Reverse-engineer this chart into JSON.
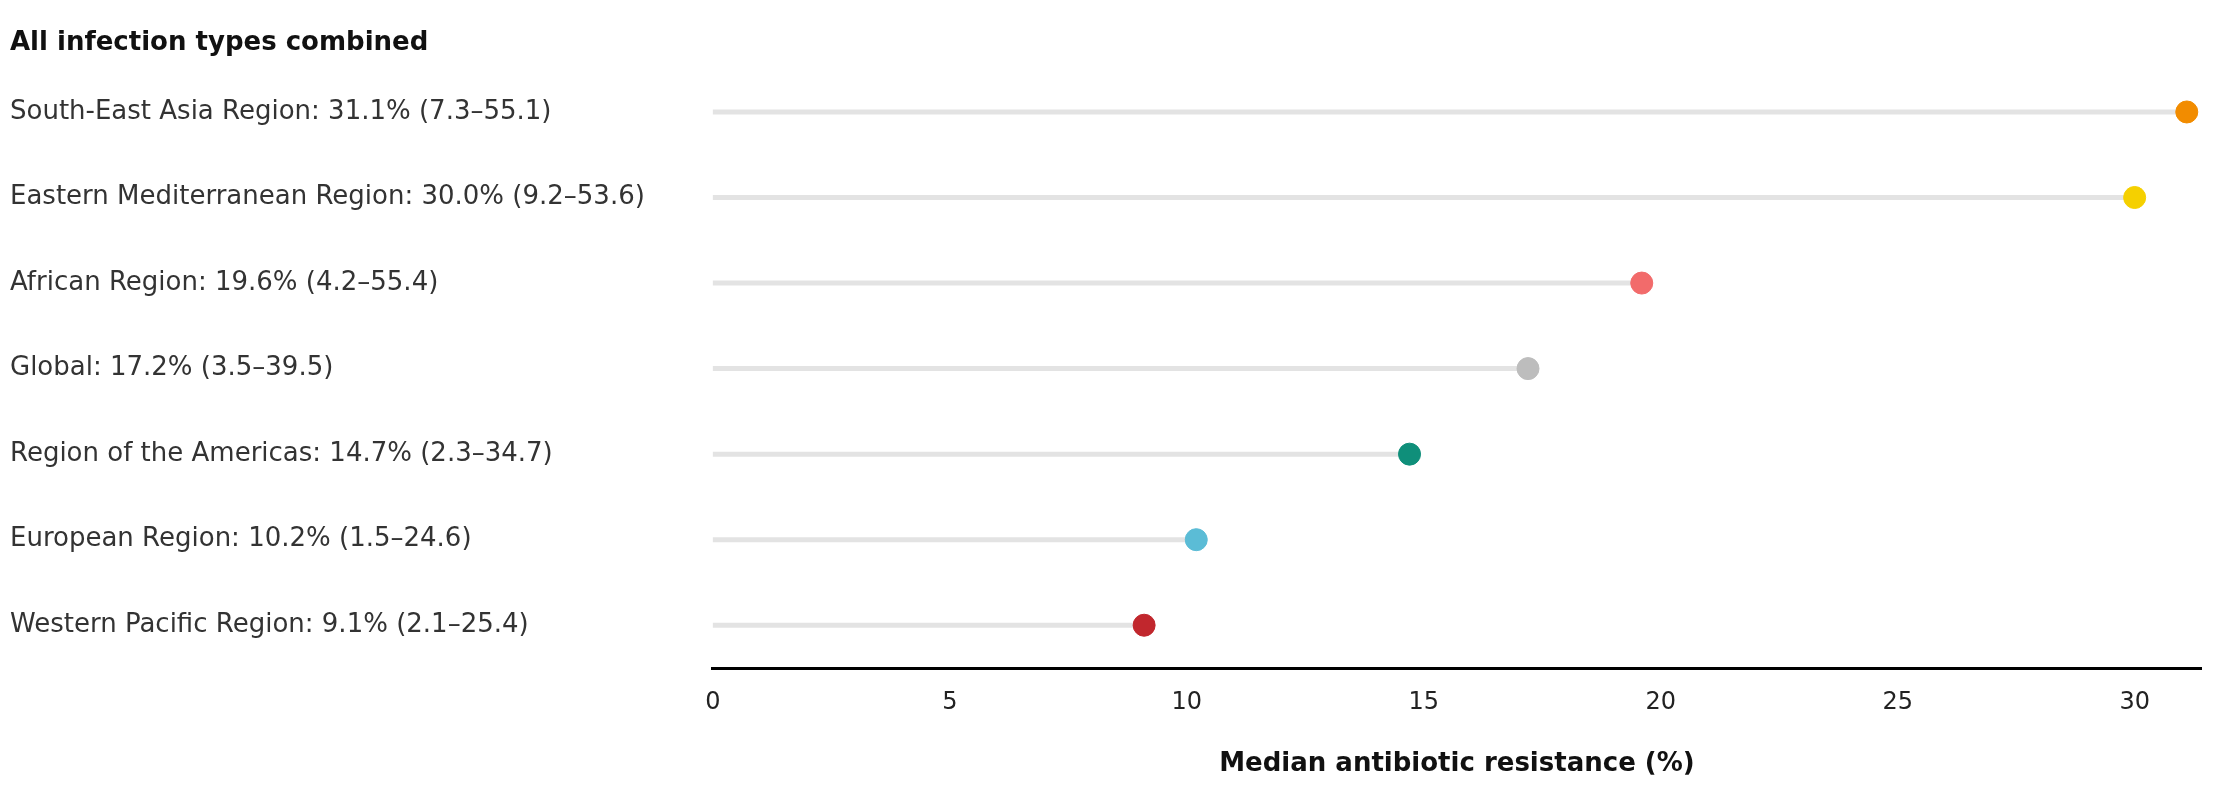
{
  "chart_data": {
    "type": "lollipop",
    "orientation": "horizontal",
    "title": "All infection types combined",
    "xlabel": "Median antibiotic resistance (%)",
    "categories": [
      "South-East Asia Region: 31.1% (7.3–55.1)",
      "Eastern Mediterranean Region: 30.0% (9.2–53.6)",
      "African Region: 19.6% (4.2–55.4)",
      "Global: 17.2% (3.5–39.5)",
      "Region of the Americas: 14.7% (2.3–34.7)",
      "European Region: 10.2% (1.5–24.6)",
      "Western Pacific Region: 9.1% (2.1–25.4)"
    ],
    "values": [
      31.1,
      30.0,
      19.6,
      17.2,
      14.7,
      10.2,
      9.1
    ],
    "colors": [
      "#f28c00",
      "#f5d000",
      "#f26b6b",
      "#bdbdbd",
      "#0f8f7a",
      "#5bbcd6",
      "#c1272d"
    ],
    "xlim": [
      0,
      31.4
    ],
    "xticks": [
      0,
      5,
      10,
      15,
      20,
      25,
      30
    ],
    "grid": false,
    "legend": false,
    "marker": "circle"
  }
}
